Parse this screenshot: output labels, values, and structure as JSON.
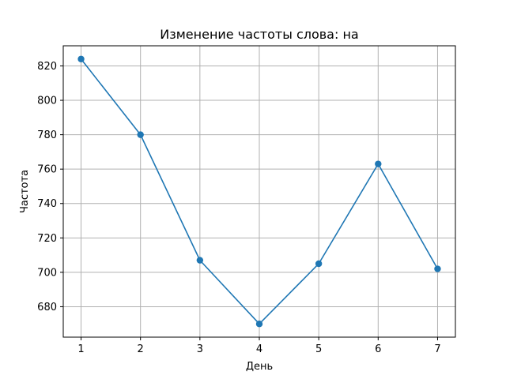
{
  "chart_data": {
    "type": "line",
    "title": "Изменение частоты слова: на",
    "xlabel": "День",
    "ylabel": "Частота",
    "x": [
      1,
      2,
      3,
      4,
      5,
      6,
      7
    ],
    "series": [
      {
        "values": [
          824,
          780,
          707,
          670,
          705,
          763,
          702
        ]
      }
    ],
    "xlim": [
      0.7,
      7.3
    ],
    "ylim": [
      662.3,
      831.7
    ],
    "xticks": [
      1,
      2,
      3,
      4,
      5,
      6,
      7
    ],
    "yticks": [
      680,
      700,
      720,
      740,
      760,
      780,
      800,
      820
    ],
    "grid": true,
    "line_color": "#1f77b4",
    "marker": "circle"
  }
}
